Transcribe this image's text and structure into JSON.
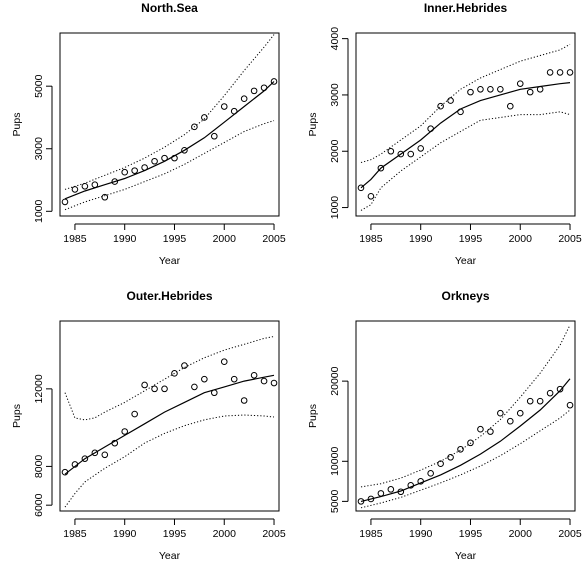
{
  "chart_data": [
    {
      "type": "scatter",
      "title": "North.Sea",
      "xlabel": "Year",
      "ylabel": "Pups",
      "xlim": [
        1983.5,
        2005.5
      ],
      "ylim": [
        850,
        6700
      ],
      "xticks": [
        1985,
        1990,
        1995,
        2000,
        2005
      ],
      "yticks": [
        1000,
        3000,
        5000
      ],
      "grid": false,
      "series": [
        {
          "kind": "points",
          "x": [
            1984,
            1985,
            1986,
            1987,
            1988,
            1989,
            1990,
            1991,
            1992,
            1993,
            1994,
            1995,
            1996,
            1997,
            1998,
            1999,
            2000,
            2001,
            2002,
            2003,
            2004,
            2005
          ],
          "y": [
            1300,
            1700,
            1800,
            1850,
            1450,
            1950,
            2250,
            2300,
            2400,
            2600,
            2700,
            2700,
            2950,
            3700,
            4000,
            3400,
            4350,
            4200,
            4600,
            4850,
            4950,
            5150
          ]
        },
        {
          "kind": "fit",
          "x": [
            1984,
            1986,
            1988,
            1990,
            1992,
            1994,
            1996,
            1998,
            2000,
            2002,
            2004,
            2005
          ],
          "y": [
            1400,
            1650,
            1850,
            2050,
            2300,
            2600,
            2950,
            3350,
            3850,
            4350,
            4850,
            5150
          ]
        },
        {
          "kind": "upper",
          "x": [
            1984,
            1986,
            1988,
            1990,
            1992,
            1994,
            1996,
            1998,
            2000,
            2002,
            2004,
            2005
          ],
          "y": [
            1700,
            1900,
            2150,
            2400,
            2700,
            3050,
            3450,
            3950,
            4700,
            5500,
            6250,
            6650
          ]
        },
        {
          "kind": "lower",
          "x": [
            1984,
            1986,
            1988,
            1990,
            1992,
            1994,
            1996,
            1998,
            2000,
            2002,
            2004,
            2005
          ],
          "y": [
            1050,
            1300,
            1500,
            1700,
            1950,
            2200,
            2500,
            2850,
            3200,
            3550,
            3800,
            3900
          ]
        }
      ]
    },
    {
      "type": "scatter",
      "title": "Inner.Hebrides",
      "xlabel": "Year",
      "ylabel": "Pups",
      "xlim": [
        1983.5,
        2005.5
      ],
      "ylim": [
        850,
        4100
      ],
      "xticks": [
        1985,
        1990,
        1995,
        2000,
        2005
      ],
      "yticks": [
        1000,
        2000,
        3000,
        4000
      ],
      "grid": false,
      "series": [
        {
          "kind": "points",
          "x": [
            1984,
            1985,
            1986,
            1987,
            1988,
            1989,
            1990,
            1991,
            1992,
            1993,
            1994,
            1995,
            1996,
            1997,
            1998,
            1999,
            2000,
            2001,
            2002,
            2003,
            2004,
            2005
          ],
          "y": [
            1350,
            1200,
            1700,
            2000,
            1950,
            1950,
            2050,
            2400,
            2800,
            2900,
            2700,
            3050,
            3100,
            3100,
            3100,
            2800,
            3200,
            3050,
            3100,
            3400,
            3400,
            3400
          ]
        },
        {
          "kind": "fit",
          "x": [
            1984,
            1985,
            1986,
            1988,
            1990,
            1992,
            1994,
            1996,
            1998,
            2000,
            2002,
            2004,
            2005
          ],
          "y": [
            1350,
            1500,
            1700,
            1950,
            2200,
            2500,
            2750,
            2900,
            3000,
            3100,
            3150,
            3200,
            3220
          ]
        },
        {
          "kind": "upper",
          "x": [
            1984,
            1985,
            1986,
            1988,
            1990,
            1992,
            1994,
            1996,
            1998,
            2000,
            2002,
            2004,
            2005
          ],
          "y": [
            1800,
            1850,
            1950,
            2200,
            2450,
            2800,
            3100,
            3300,
            3450,
            3600,
            3700,
            3800,
            3900
          ]
        },
        {
          "kind": "lower",
          "x": [
            1984,
            1985,
            1986,
            1988,
            1990,
            1992,
            1994,
            1996,
            1998,
            2000,
            2002,
            2004,
            2005
          ],
          "y": [
            950,
            1050,
            1350,
            1650,
            1900,
            2150,
            2350,
            2550,
            2600,
            2650,
            2650,
            2700,
            2650
          ]
        }
      ]
    },
    {
      "type": "scatter",
      "title": "Outer.Hebrides",
      "xlabel": "Year",
      "ylabel": "Pups",
      "xlim": [
        1983.5,
        2005.5
      ],
      "ylim": [
        5700,
        15500
      ],
      "xticks": [
        1985,
        1990,
        1995,
        2000,
        2005
      ],
      "yticks": [
        6000,
        8000,
        12000
      ],
      "grid": false,
      "series": [
        {
          "kind": "points",
          "x": [
            1984,
            1985,
            1986,
            1987,
            1988,
            1989,
            1990,
            1991,
            1992,
            1993,
            1994,
            1995,
            1996,
            1997,
            1998,
            1999,
            2000,
            2001,
            2002,
            2003,
            2004,
            2005
          ],
          "y": [
            7700,
            8100,
            8400,
            8700,
            8600,
            9200,
            9800,
            10700,
            12200,
            12000,
            12000,
            12800,
            13200,
            12100,
            12500,
            11800,
            13400,
            12500,
            11400,
            12700,
            12400,
            12300
          ]
        },
        {
          "kind": "fit",
          "x": [
            1984,
            1986,
            1988,
            1990,
            1992,
            1994,
            1996,
            1998,
            2000,
            2002,
            2004,
            2005
          ],
          "y": [
            7600,
            8400,
            9000,
            9600,
            10200,
            10800,
            11300,
            11800,
            12100,
            12400,
            12600,
            12700
          ]
        },
        {
          "kind": "upper",
          "x": [
            1984,
            1985,
            1986,
            1987,
            1988,
            1990,
            1992,
            1994,
            1996,
            1998,
            2000,
            2002,
            2004,
            2005
          ],
          "y": [
            11800,
            10500,
            10400,
            10500,
            10800,
            11300,
            11900,
            12500,
            13100,
            13600,
            14000,
            14300,
            14600,
            14700
          ]
        },
        {
          "kind": "lower",
          "x": [
            1984,
            1985,
            1986,
            1988,
            1990,
            1992,
            1994,
            1996,
            1998,
            2000,
            2002,
            2004,
            2005
          ],
          "y": [
            5900,
            6600,
            7200,
            7900,
            8500,
            9200,
            9700,
            10100,
            10400,
            10600,
            10650,
            10600,
            10550
          ]
        }
      ]
    },
    {
      "type": "scatter",
      "title": "Orkneys",
      "xlabel": "Year",
      "ylabel": "Pups",
      "xlim": [
        1983.5,
        2005.5
      ],
      "ylim": [
        3800,
        27500
      ],
      "xticks": [
        1985,
        1990,
        1995,
        2000,
        2005
      ],
      "yticks": [
        5000,
        10000,
        20000
      ],
      "grid": false,
      "series": [
        {
          "kind": "points",
          "x": [
            1984,
            1985,
            1986,
            1987,
            1988,
            1989,
            1990,
            1991,
            1992,
            1993,
            1994,
            1995,
            1996,
            1997,
            1998,
            1999,
            2000,
            2001,
            2002,
            2003,
            2004,
            2005
          ],
          "y": [
            5000,
            5300,
            6000,
            6500,
            6200,
            7000,
            7500,
            8500,
            9700,
            10500,
            11500,
            12300,
            14000,
            13700,
            16000,
            15000,
            16000,
            17500,
            17500,
            18500,
            19000,
            17000
          ]
        },
        {
          "kind": "fit",
          "x": [
            1984,
            1986,
            1988,
            1990,
            1992,
            1994,
            1996,
            1998,
            2000,
            2002,
            2004,
            2005
          ],
          "y": [
            5000,
            5600,
            6300,
            7300,
            8300,
            9500,
            10900,
            12500,
            14400,
            16400,
            18800,
            20300
          ]
        },
        {
          "kind": "upper",
          "x": [
            1984,
            1986,
            1988,
            1990,
            1992,
            1994,
            1996,
            1998,
            2000,
            2002,
            2004,
            2005
          ],
          "y": [
            6800,
            7200,
            7900,
            8900,
            10000,
            11400,
            13100,
            15200,
            18000,
            21000,
            24500,
            27000
          ]
        },
        {
          "kind": "lower",
          "x": [
            1984,
            1986,
            1988,
            1990,
            1992,
            1994,
            1996,
            1998,
            2000,
            2002,
            2004,
            2005
          ],
          "y": [
            4200,
            4800,
            5500,
            6400,
            7300,
            8300,
            9400,
            10700,
            12200,
            13800,
            15400,
            16400
          ]
        }
      ]
    }
  ]
}
